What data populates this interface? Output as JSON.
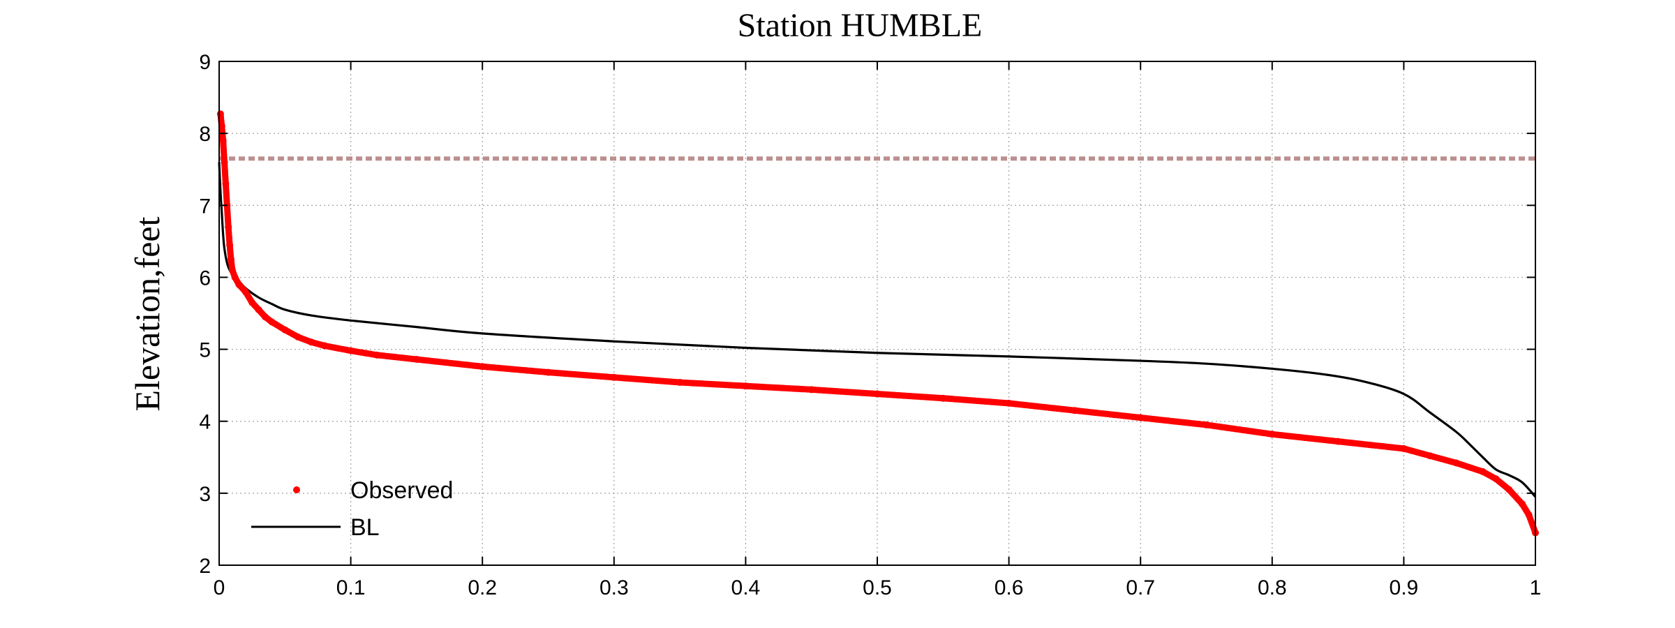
{
  "chart_data": {
    "type": "line",
    "title": "Station HUMBLE",
    "xlabel": "",
    "ylabel": "Elevation,feet",
    "xlim": [
      0,
      1
    ],
    "ylim": [
      2,
      9
    ],
    "grid": true,
    "legend_position": "bottom-left",
    "xticks": [
      0,
      0.1,
      0.2,
      0.3,
      0.4,
      0.5,
      0.6,
      0.7,
      0.8,
      0.9,
      1
    ],
    "xtick_labels": [
      "0",
      "0.1",
      "0.2",
      "0.3",
      "0.4",
      "0.5",
      "0.6",
      "0.7",
      "0.8",
      "0.9",
      "1"
    ],
    "yticks": [
      2,
      3,
      4,
      5,
      6,
      7,
      8,
      9
    ],
    "ytick_labels": [
      "2",
      "3",
      "4",
      "5",
      "6",
      "7",
      "8",
      "9"
    ],
    "series": [
      {
        "name": "Observed",
        "style": "markers",
        "color": "#ff0000",
        "x": [
          0.001,
          0.002,
          0.003,
          0.004,
          0.005,
          0.006,
          0.007,
          0.008,
          0.009,
          0.01,
          0.012,
          0.015,
          0.02,
          0.025,
          0.03,
          0.035,
          0.04,
          0.05,
          0.06,
          0.07,
          0.08,
          0.1,
          0.12,
          0.15,
          0.2,
          0.25,
          0.3,
          0.35,
          0.4,
          0.45,
          0.5,
          0.55,
          0.6,
          0.65,
          0.7,
          0.75,
          0.8,
          0.85,
          0.9,
          0.92,
          0.94,
          0.96,
          0.97,
          0.98,
          0.99,
          0.995,
          1.0
        ],
        "y": [
          8.27,
          8.1,
          7.9,
          7.6,
          7.3,
          7.0,
          6.7,
          6.45,
          6.25,
          6.1,
          6.0,
          5.9,
          5.8,
          5.65,
          5.55,
          5.45,
          5.38,
          5.27,
          5.17,
          5.1,
          5.05,
          4.98,
          4.92,
          4.86,
          4.76,
          4.68,
          4.61,
          4.54,
          4.49,
          4.44,
          4.38,
          4.32,
          4.25,
          4.15,
          4.05,
          3.95,
          3.82,
          3.72,
          3.62,
          3.52,
          3.42,
          3.3,
          3.2,
          3.05,
          2.85,
          2.7,
          2.45
        ]
      },
      {
        "name": "BL",
        "style": "line",
        "color": "#000000",
        "x": [
          0.0,
          0.001,
          0.002,
          0.003,
          0.004,
          0.006,
          0.008,
          0.01,
          0.015,
          0.02,
          0.03,
          0.04,
          0.05,
          0.07,
          0.1,
          0.15,
          0.2,
          0.3,
          0.4,
          0.5,
          0.6,
          0.7,
          0.75,
          0.8,
          0.84,
          0.87,
          0.9,
          0.92,
          0.94,
          0.95,
          0.96,
          0.97,
          0.98,
          0.99,
          1.0
        ],
        "y": [
          7.6,
          7.2,
          6.9,
          6.6,
          6.4,
          6.2,
          6.1,
          6.05,
          5.95,
          5.85,
          5.72,
          5.63,
          5.55,
          5.47,
          5.4,
          5.31,
          5.22,
          5.11,
          5.02,
          4.95,
          4.9,
          4.84,
          4.8,
          4.73,
          4.65,
          4.55,
          4.38,
          4.12,
          3.85,
          3.68,
          3.5,
          3.33,
          3.25,
          3.15,
          2.95
        ]
      }
    ],
    "reference_line": {
      "y": 7.65,
      "color": "#bc8f8f",
      "style": "dashed"
    }
  }
}
